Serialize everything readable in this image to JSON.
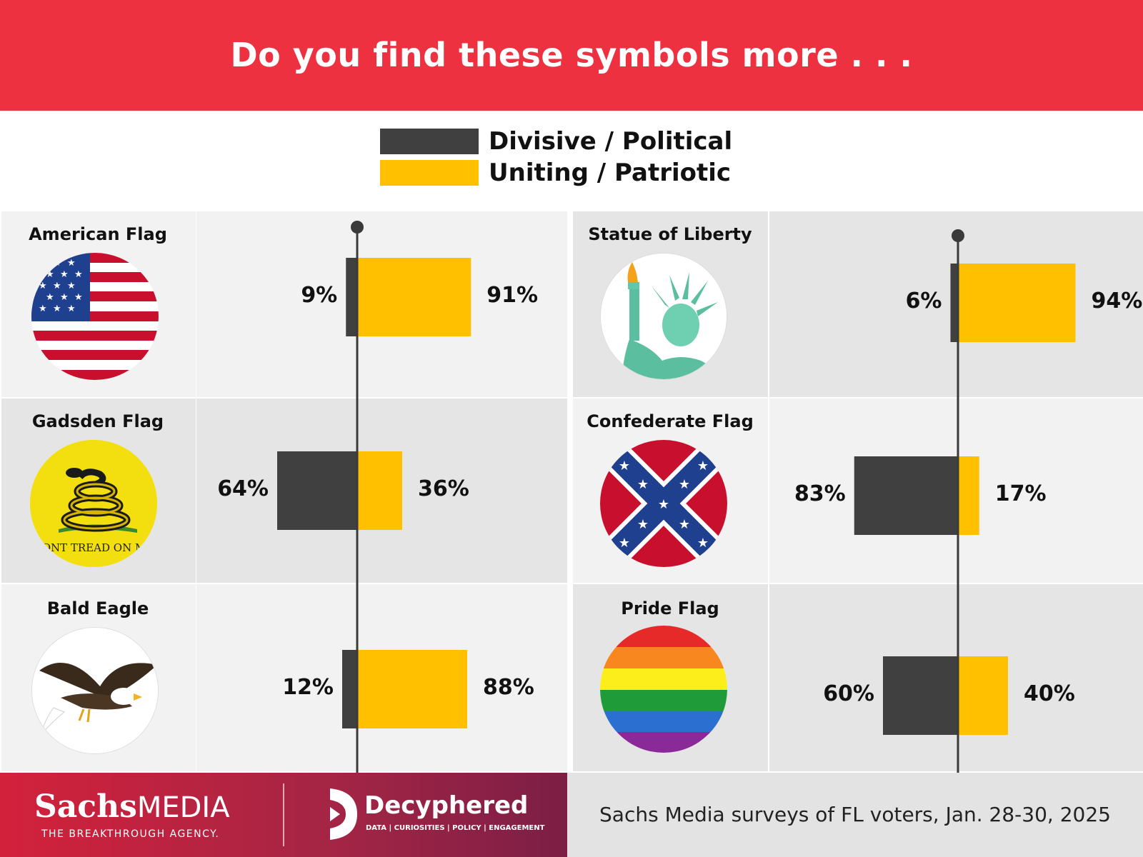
{
  "header": {
    "title": "Do you find these symbols more . . ."
  },
  "colors": {
    "banner": "#ee3140",
    "divisive": "#404040",
    "uniting": "#ffc000",
    "panel_light": "#f2f2f2",
    "panel_dark": "#e6e5e6"
  },
  "chart_data": {
    "type": "bar",
    "subtype": "diverging-horizontal",
    "unit": "%",
    "legend": {
      "placement": "top-center",
      "entries": [
        {
          "name": "Divisive / Political",
          "color": "#404040"
        },
        {
          "name": "Uniting / Patriotic",
          "color": "#ffc000"
        }
      ]
    },
    "categories": [
      "American Flag",
      "Gadsden Flag",
      "Bald Eagle",
      "Statue of Liberty",
      "Confederate Flag",
      "Pride Flag"
    ],
    "series": [
      {
        "name": "Divisive / Political",
        "values": [
          9,
          64,
          12,
          6,
          83,
          60
        ],
        "labels": [
          "9%",
          "64%",
          "12%",
          "6%",
          "83%",
          "60%"
        ]
      },
      {
        "name": "Uniting / Patriotic",
        "values": [
          91,
          36,
          88,
          94,
          17,
          40
        ],
        "labels": [
          "91%",
          "36%",
          "88%",
          "94%",
          "17%",
          "40%"
        ]
      }
    ]
  },
  "emblems": {
    "gadsden_text": "DONT TREAD ON ME"
  },
  "footer": {
    "brand1_a": "Sachs",
    "brand1_b": "MEDIA",
    "brand1_tag": "THE BREAKTHROUGH AGENCY.",
    "brand2": "Decyphered",
    "brand2_tag": "DATA | CURIOSITIES | POLICY | ENGAGEMENT",
    "source": "Sachs Media surveys of FL voters, Jan. 28-30, 2025"
  }
}
